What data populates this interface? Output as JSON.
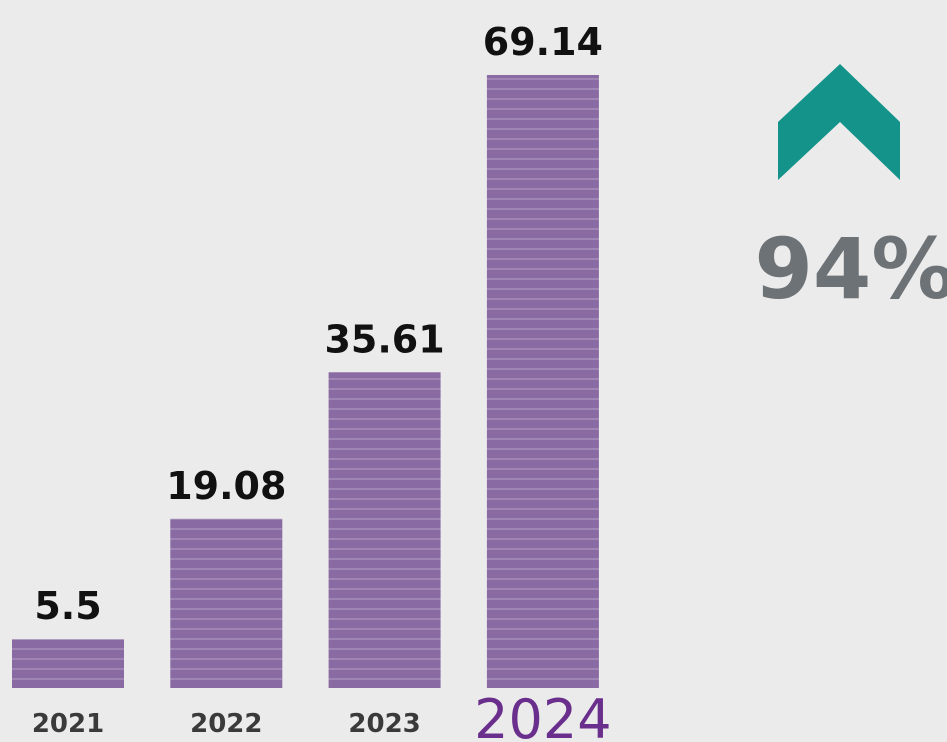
{
  "chart_data": {
    "type": "bar",
    "categories": [
      "2021",
      "2022",
      "2023",
      "2024"
    ],
    "values": [
      5.5,
      19.08,
      35.61,
      69.14
    ],
    "color": "#8a6aa3",
    "highlight_color": "#6a2f8c",
    "annotation": "94%",
    "annotation_color": "#6d7276",
    "arrow_color": "#13938a"
  }
}
